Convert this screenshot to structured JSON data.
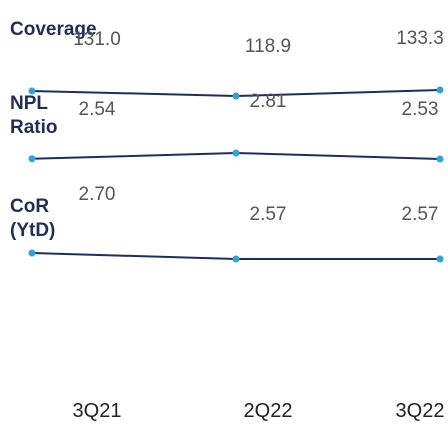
{
  "chart_data": {
    "type": "line",
    "categories": [
      "3Q21",
      "2Q22",
      "3Q22"
    ],
    "series": [
      {
        "name": "Coverage",
        "color": "#1f2d5c",
        "values": [
          131.0,
          118.9,
          133.3
        ],
        "value_labels": [
          "131.0",
          "118.9",
          "133.3"
        ]
      },
      {
        "name": "NPL Ratio",
        "color": "#1f2d5c",
        "values": [
          2.54,
          2.81,
          2.53
        ],
        "value_labels": [
          "2.54",
          "2.81",
          "2.53"
        ]
      },
      {
        "name": "CoR (YtD)",
        "color": "#1f2d5c",
        "values": [
          2.7,
          2.57,
          2.57
        ],
        "value_labels": [
          "2.70",
          "2.57",
          "2.57"
        ]
      }
    ],
    "marker_color": "#2ea3dc"
  }
}
